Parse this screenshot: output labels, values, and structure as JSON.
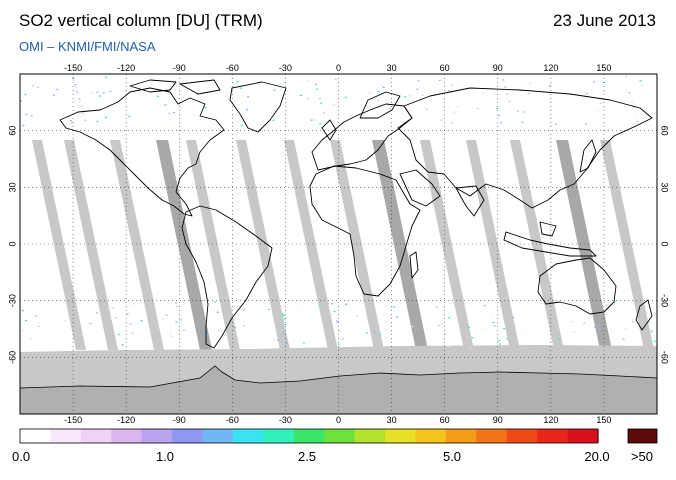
{
  "header": {
    "title": "SO2 vertical column [DU] (TRM)",
    "date": "23 June 2013",
    "source": "OMI  –  KNMI/FMI/NASA"
  },
  "map": {
    "projection": "equirectangular",
    "lon_range": [
      -180,
      180
    ],
    "lat_range": [
      -90,
      90
    ],
    "lon_ticks": [
      -150,
      -120,
      -90,
      -60,
      -30,
      0,
      30,
      60,
      90,
      120,
      150
    ],
    "lat_ticks": [
      60,
      30,
      0,
      -30,
      -60
    ],
    "lon_tick_labels": [
      "-150",
      "-120",
      "-90",
      "-60",
      "-30",
      "0",
      "30",
      "60",
      "90",
      "120",
      "150"
    ],
    "lat_tick_labels": [
      "60",
      "30",
      "0",
      "-30",
      "-60"
    ],
    "grid": "dotted",
    "colors": {
      "no_data": "#c8c8c8",
      "no_data_dark": "#a8a8a8",
      "antarctica": "#b4b4b4",
      "coast": "#000000"
    }
  },
  "colorbar": {
    "colors": [
      "#ffffff",
      "#f7e8fb",
      "#efd3f7",
      "#dcb6f0",
      "#b9a4ef",
      "#8f97f2",
      "#6fb7f5",
      "#39e3f2",
      "#2ff2b8",
      "#39e86a",
      "#6fe23a",
      "#b4e02e",
      "#e6e026",
      "#f6c41d",
      "#f59d18",
      "#f27417",
      "#ee4a17",
      "#e8261a",
      "#d8121b"
    ],
    "overflow_color": "#5c0a0a",
    "labels": [
      {
        "text": "0.0",
        "value": 0.0
      },
      {
        "text": "1.0",
        "value": 1.0
      },
      {
        "text": "2.5",
        "value": 2.5
      },
      {
        "text": "5.0",
        "value": 5.0
      },
      {
        "text": "20.0",
        "value": 20.0
      }
    ],
    "overflow_label": ">50"
  }
}
